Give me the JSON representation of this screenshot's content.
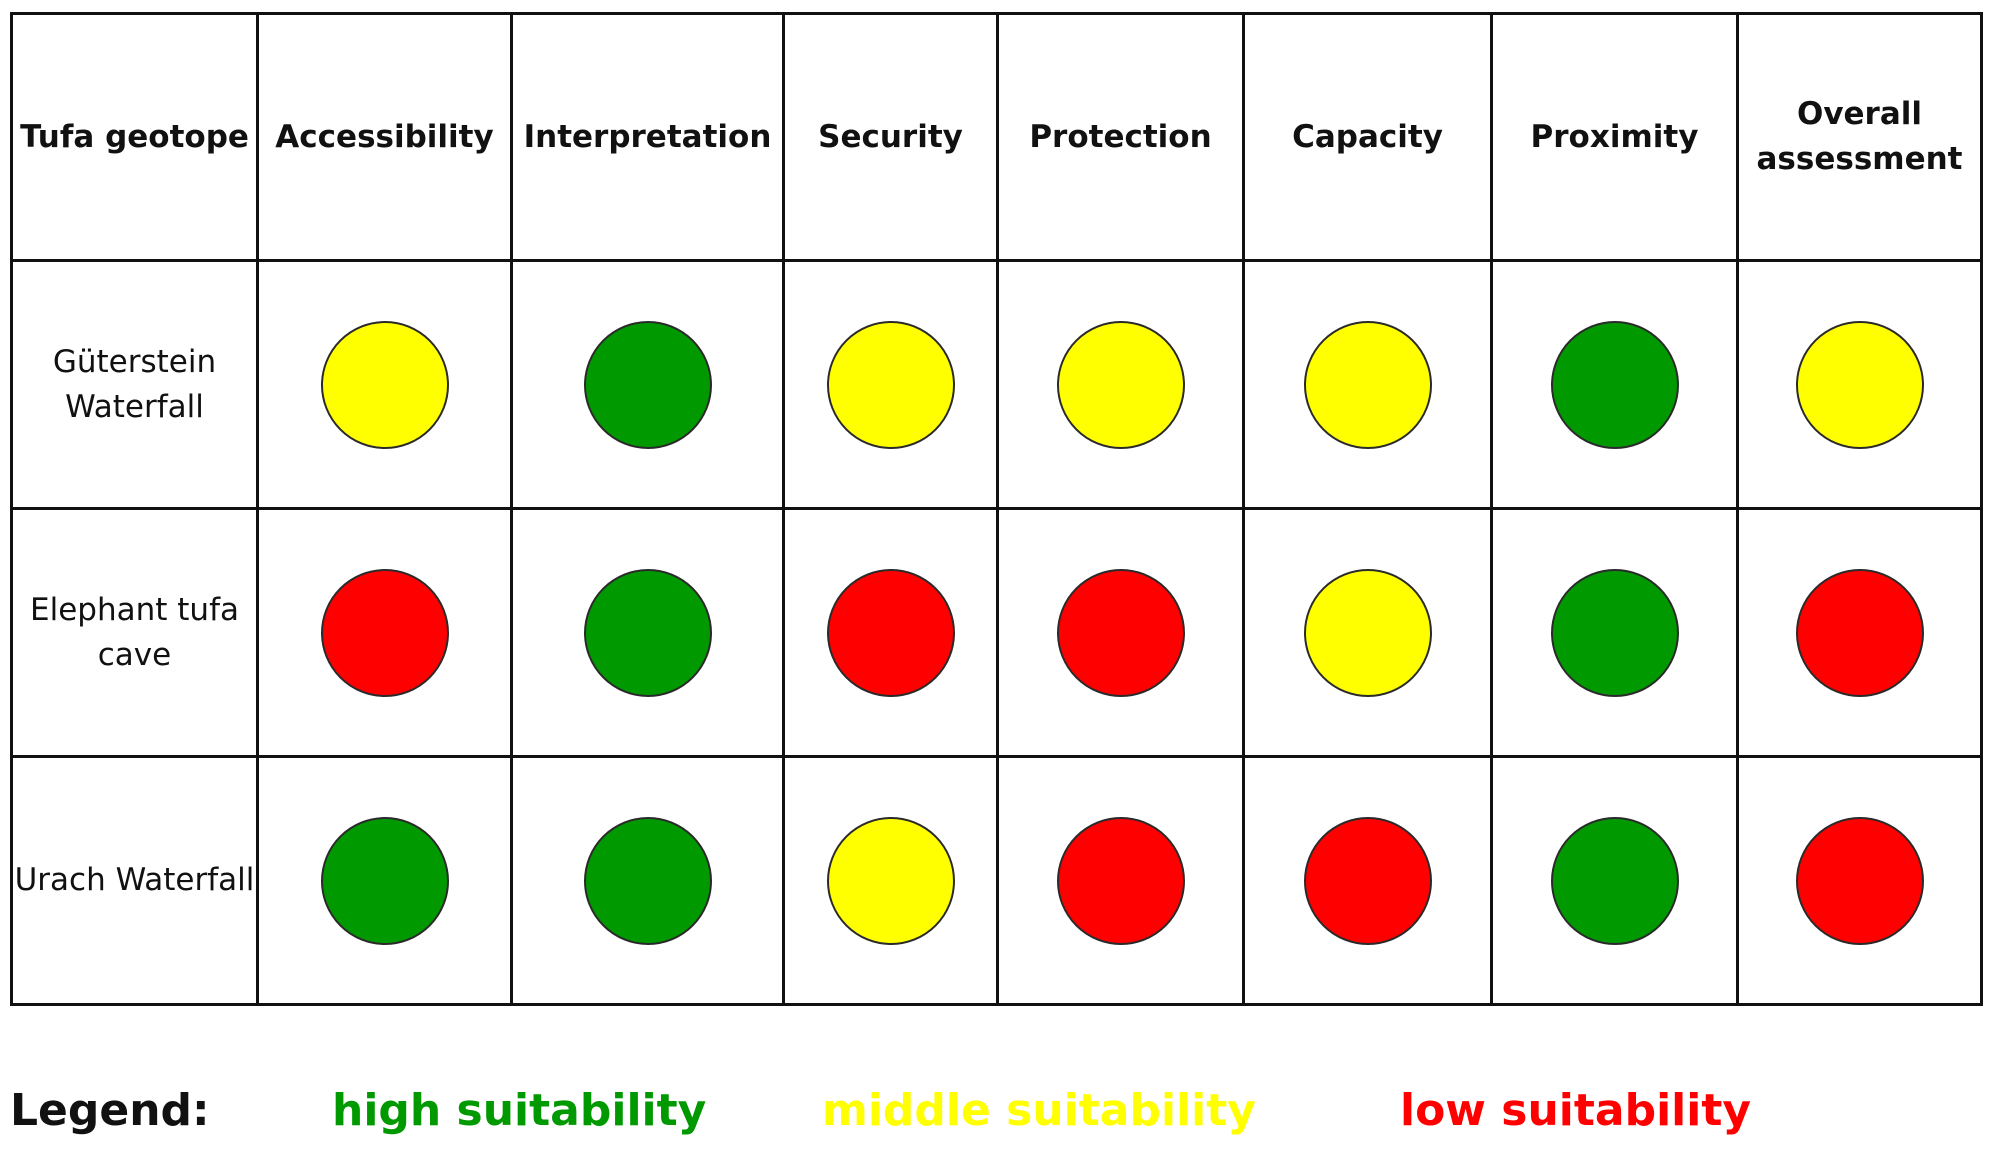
{
  "colors": {
    "high": "#009900",
    "middle": "#ffff00",
    "low": "#ff0000"
  },
  "table": {
    "headers": [
      "Tufa geotope",
      "Accessibility",
      "Interpretation",
      "Security",
      "Protection",
      "Capacity",
      "Proximity",
      "Overall assessment"
    ],
    "rows": [
      {
        "name": "Güterstein Waterfall",
        "ratings": [
          "middle",
          "high",
          "middle",
          "middle",
          "middle",
          "high",
          "middle"
        ]
      },
      {
        "name": "Elephant tufa cave",
        "ratings": [
          "low",
          "high",
          "low",
          "low",
          "middle",
          "high",
          "low"
        ]
      },
      {
        "name": "Urach Waterfall",
        "ratings": [
          "high",
          "high",
          "middle",
          "low",
          "low",
          "high",
          "low"
        ]
      }
    ]
  },
  "legend": {
    "title": "Legend:",
    "high": "high suitability",
    "middle": "middle suitability",
    "low": "low suitability"
  }
}
